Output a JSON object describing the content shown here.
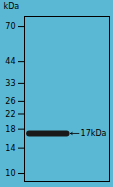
{
  "chart_data": {
    "type": "band",
    "ylabel": "kDa",
    "log": "y",
    "ylim": [
      9,
      80
    ],
    "yticks": [
      70,
      44,
      33,
      26,
      22,
      18,
      14,
      10
    ],
    "values": [
      17
    ],
    "value_labels": [
      "17kDa"
    ],
    "data_labels": true,
    "color": "#1a1a1a",
    "tick_labels": "y",
    "grid": false
  }
}
